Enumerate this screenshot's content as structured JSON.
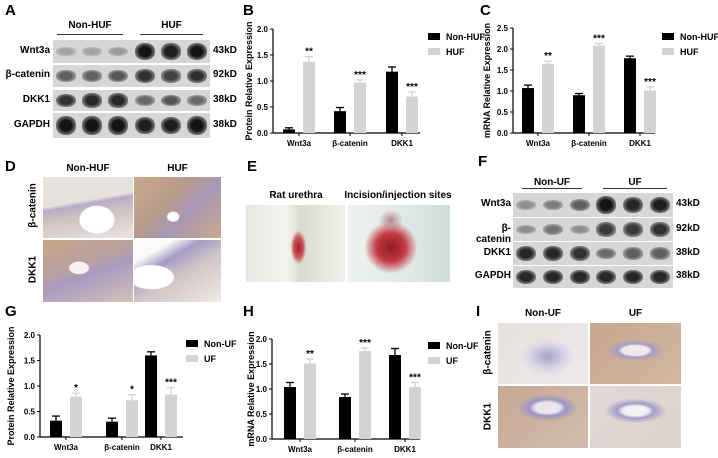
{
  "panels": {
    "A": {
      "letter": "A",
      "groups": [
        "Non-HUF",
        "HUF"
      ],
      "rows": [
        {
          "label": "Wnt3a",
          "kd": "43kD",
          "bands": [
            0.2,
            0.2,
            0.25,
            0.95,
            0.9,
            0.95
          ]
        },
        {
          "label": "β-catenin",
          "kd": "92kD",
          "bands": [
            0.55,
            0.55,
            0.6,
            0.8,
            0.7,
            0.8
          ]
        },
        {
          "label": "DKK1",
          "kd": "38kD",
          "bands": [
            0.8,
            0.85,
            0.85,
            0.5,
            0.6,
            0.5
          ]
        },
        {
          "label": "GAPDH",
          "kd": "38kD",
          "bands": [
            0.95,
            0.95,
            0.95,
            0.9,
            0.9,
            0.95
          ]
        }
      ]
    },
    "D": {
      "letter": "D",
      "columns": [
        "Non-HUF",
        "HUF"
      ],
      "rows": [
        "β-catenin",
        "DKK1"
      ]
    },
    "E": {
      "letter": "E",
      "captions": [
        "Rat urethra",
        "Incision/injection sites"
      ]
    },
    "F": {
      "letter": "F",
      "groups": [
        "Non-UF",
        "UF"
      ],
      "rows": [
        {
          "label": "Wnt3a",
          "kd": "43kD",
          "bands": [
            0.3,
            0.4,
            0.55,
            0.95,
            0.85,
            0.9
          ]
        },
        {
          "label": "β-catenin",
          "kd": "92kD",
          "bands": [
            0.3,
            0.45,
            0.3,
            0.75,
            0.75,
            0.8
          ]
        },
        {
          "label": "DKK1",
          "kd": "38kD",
          "bands": [
            0.85,
            0.85,
            0.8,
            0.5,
            0.55,
            0.55
          ]
        },
        {
          "label": "GAPDH",
          "kd": "38kD",
          "bands": [
            0.85,
            0.85,
            0.85,
            0.85,
            0.85,
            0.85
          ]
        }
      ]
    },
    "I": {
      "letter": "I",
      "columns": [
        "Non-UF",
        "UF"
      ],
      "rows": [
        "β-catenin",
        "DKK1"
      ]
    }
  },
  "colors": {
    "series1": "#000000",
    "series2": "#d3d3d3"
  },
  "chart_data": [
    {
      "panel": "B",
      "type": "bar",
      "categories": [
        "Wnt3a",
        "β-catenin",
        "DKK1"
      ],
      "ylabel": "Protein Relative Expression",
      "ylim": [
        0,
        2.0
      ],
      "yticks": [
        "0.0",
        "0.5",
        "1.0",
        "1.5",
        "2.0"
      ],
      "legend": "top-right",
      "series": [
        {
          "name": "Non-HUF",
          "values": [
            0.07,
            0.42,
            1.18
          ],
          "errors": [
            0.03,
            0.07,
            0.09
          ]
        },
        {
          "name": "HUF",
          "values": [
            1.37,
            0.97,
            0.7
          ],
          "errors": [
            0.1,
            0.05,
            0.09
          ]
        }
      ],
      "significance": [
        "**",
        "***",
        "***"
      ]
    },
    {
      "panel": "C",
      "type": "bar",
      "categories": [
        "Wnt3a",
        "β-catenin",
        "DKK1"
      ],
      "ylabel": "mRNA Relative Expression",
      "ylim": [
        0,
        2.5
      ],
      "yticks": [
        "0.0",
        "0.5",
        "1.0",
        "1.5",
        "2.0",
        "2.5"
      ],
      "legend": "top-right",
      "series": [
        {
          "name": "Non-HUF",
          "values": [
            1.07,
            0.9,
            1.78
          ],
          "errors": [
            0.07,
            0.04,
            0.05
          ]
        },
        {
          "name": "HUF",
          "values": [
            1.65,
            2.08,
            1.01
          ],
          "errors": [
            0.06,
            0.05,
            0.09
          ]
        }
      ],
      "significance": [
        "**",
        "***",
        "***"
      ]
    },
    {
      "panel": "G",
      "type": "bar",
      "categories": [
        "Wnt3a",
        "β-catenin",
        "DKK1"
      ],
      "ylabel": "Protein Relative Expression",
      "ylim": [
        0,
        2.0
      ],
      "yticks": [
        "0.0",
        "0.5",
        "1.0",
        "1.5",
        "2.0"
      ],
      "legend": "top-right",
      "series": [
        {
          "name": "Non-UF",
          "values": [
            0.32,
            0.3,
            1.6
          ],
          "errors": [
            0.09,
            0.07,
            0.07
          ]
        },
        {
          "name": "UF",
          "values": [
            0.79,
            0.72,
            0.83
          ],
          "errors": [
            0.07,
            0.11,
            0.14
          ]
        }
      ],
      "significance": [
        "*",
        "*",
        "***"
      ]
    },
    {
      "panel": "H",
      "type": "bar",
      "categories": [
        "Wnt3a",
        "β-catenin",
        "DKK1"
      ],
      "ylabel": "mRNA Relative Expression",
      "ylim": [
        0,
        2.0
      ],
      "yticks": [
        "0.0",
        "0.5",
        "1.0",
        "1.5",
        "2.0"
      ],
      "legend": "top-right",
      "series": [
        {
          "name": "Non-UF",
          "values": [
            1.04,
            0.84,
            1.68
          ],
          "errors": [
            0.09,
            0.06,
            0.13
          ]
        },
        {
          "name": "UF",
          "values": [
            1.51,
            1.76,
            1.04
          ],
          "errors": [
            0.09,
            0.06,
            0.09
          ]
        }
      ],
      "significance": [
        "**",
        "***",
        "***"
      ]
    }
  ],
  "chart_letters": [
    "B",
    "C",
    "G",
    "H"
  ]
}
